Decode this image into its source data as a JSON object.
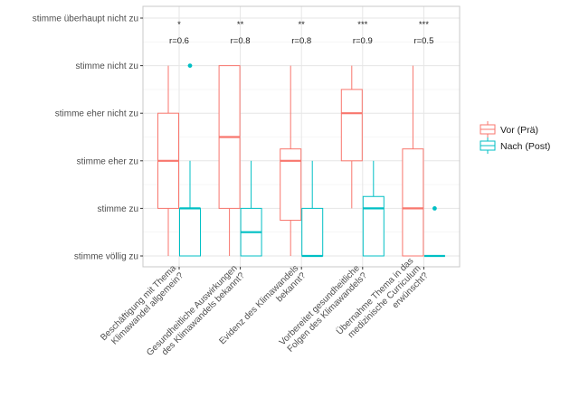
{
  "chart_data": {
    "type": "boxplot",
    "title": "",
    "xlabel": "",
    "ylabel": "",
    "y_levels": [
      "stimme völlig zu",
      "stimme zu",
      "stimme eher zu",
      "stimme eher nicht zu",
      "stimme nicht zu",
      "stimme überhaupt nicht zu"
    ],
    "ylim": [
      1,
      6
    ],
    "grid": true,
    "legend": {
      "position": "right",
      "entries": [
        "Vor (Prä)",
        "Nach (Post)"
      ]
    },
    "colors": {
      "Vor (Prä)": "#F8766D",
      "Nach (Post)": "#00BFC4"
    },
    "categories": [
      "Beschäftigung mit Thema|Klimawandel allgemein?",
      "Gesundheitliche Auswirkungen|des Klimawandels bekannt?",
      "Evidenz des Klimawandels|bekannt?",
      "Vorbereitet gesundheitliche|Folgen des Klimawandels?",
      "Übernahme Thema in das|medizinische Curriculum|erwünscht?"
    ],
    "annotations": [
      {
        "significance": "*",
        "effect": "r=0.6"
      },
      {
        "significance": "**",
        "effect": "r=0.8"
      },
      {
        "significance": "**",
        "effect": "r=0.8"
      },
      {
        "significance": "***",
        "effect": "r=0.9"
      },
      {
        "significance": "***",
        "effect": "r=0.5"
      }
    ],
    "series": [
      {
        "name": "Vor (Prä)",
        "boxes": [
          {
            "whisker_low": 1,
            "q1": 2,
            "median": 3,
            "q3": 4,
            "whisker_high": 5,
            "outliers": []
          },
          {
            "whisker_low": 1,
            "q1": 2,
            "median": 3.5,
            "q3": 5,
            "whisker_high": 5,
            "outliers": []
          },
          {
            "whisker_low": 1,
            "q1": 1.75,
            "median": 3,
            "q3": 3.25,
            "whisker_high": 5,
            "outliers": []
          },
          {
            "whisker_low": 2,
            "q1": 3,
            "median": 4,
            "q3": 4.5,
            "whisker_high": 5,
            "outliers": []
          },
          {
            "whisker_low": 1,
            "q1": 1,
            "median": 2,
            "q3": 3.25,
            "whisker_high": 5,
            "outliers": []
          }
        ]
      },
      {
        "name": "Nach (Post)",
        "boxes": [
          {
            "whisker_low": 1,
            "q1": 1,
            "median": 2,
            "q3": 2,
            "whisker_high": 3,
            "outliers": [
              5
            ]
          },
          {
            "whisker_low": 1,
            "q1": 1,
            "median": 1.5,
            "q3": 2,
            "whisker_high": 3,
            "outliers": []
          },
          {
            "whisker_low": 1,
            "q1": 1,
            "median": 1,
            "q3": 2,
            "whisker_high": 3,
            "outliers": []
          },
          {
            "whisker_low": 1,
            "q1": 1,
            "median": 2,
            "q3": 2.25,
            "whisker_high": 3,
            "outliers": []
          },
          {
            "whisker_low": 1,
            "q1": 1,
            "median": 1,
            "q3": 1,
            "whisker_high": 1,
            "outliers": [
              2
            ]
          }
        ]
      }
    ]
  }
}
